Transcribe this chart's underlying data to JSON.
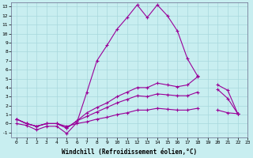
{
  "xlabel": "Windchill (Refroidissement éolien,°C)",
  "background_color": "#c8eef0",
  "line_color": "#990099",
  "xlim": [
    -0.5,
    23
  ],
  "ylim": [
    -1.5,
    13.5
  ],
  "xticks": [
    0,
    1,
    2,
    3,
    4,
    5,
    6,
    7,
    8,
    9,
    10,
    11,
    12,
    13,
    14,
    15,
    16,
    17,
    18,
    19,
    20,
    21,
    22,
    23
  ],
  "yticks": [
    -1,
    0,
    1,
    2,
    3,
    4,
    5,
    6,
    7,
    8,
    9,
    10,
    11,
    12,
    13
  ],
  "lines": [
    {
      "x": [
        0,
        1,
        2,
        3,
        4,
        5,
        6,
        7,
        8,
        9,
        10,
        11,
        12,
        13,
        14,
        15,
        16,
        17,
        18,
        19,
        20,
        21,
        22
      ],
      "y": [
        0,
        -0.2,
        -0.7,
        -0.3,
        -0.3,
        -1.1,
        0.1,
        3.5,
        7.0,
        8.7,
        10.5,
        11.8,
        13.2,
        11.8,
        13.2,
        12.0,
        10.3,
        7.2,
        5.3,
        null,
        null,
        null,
        1.1
      ]
    },
    {
      "x": [
        0,
        1,
        2,
        3,
        4,
        5,
        6,
        7,
        8,
        9,
        10,
        11,
        12,
        13,
        14,
        15,
        16,
        17,
        18,
        19,
        20,
        21,
        22
      ],
      "y": [
        0.5,
        0.0,
        -0.3,
        0.0,
        0.0,
        -0.5,
        0.3,
        1.2,
        1.8,
        2.3,
        3.0,
        3.5,
        4.0,
        4.0,
        4.5,
        4.3,
        4.1,
        4.3,
        5.2,
        null,
        4.3,
        3.7,
        1.1
      ]
    },
    {
      "x": [
        0,
        1,
        2,
        3,
        4,
        5,
        6,
        7,
        8,
        9,
        10,
        11,
        12,
        13,
        14,
        15,
        16,
        17,
        18,
        19,
        20,
        21,
        22
      ],
      "y": [
        0.5,
        0.0,
        -0.3,
        0.0,
        0.0,
        -0.5,
        0.3,
        0.8,
        1.3,
        1.8,
        2.3,
        2.7,
        3.1,
        3.0,
        3.3,
        3.2,
        3.1,
        3.1,
        3.5,
        null,
        3.8,
        2.8,
        1.1
      ]
    },
    {
      "x": [
        0,
        1,
        2,
        3,
        4,
        5,
        6,
        7,
        8,
        9,
        10,
        11,
        12,
        13,
        14,
        15,
        16,
        17,
        18,
        19,
        20,
        21,
        22
      ],
      "y": [
        0.5,
        0.0,
        -0.3,
        0.0,
        0.0,
        -0.3,
        0.0,
        0.2,
        0.5,
        0.7,
        1.0,
        1.2,
        1.5,
        1.5,
        1.7,
        1.6,
        1.5,
        1.5,
        1.7,
        null,
        1.5,
        1.2,
        1.1
      ]
    }
  ]
}
